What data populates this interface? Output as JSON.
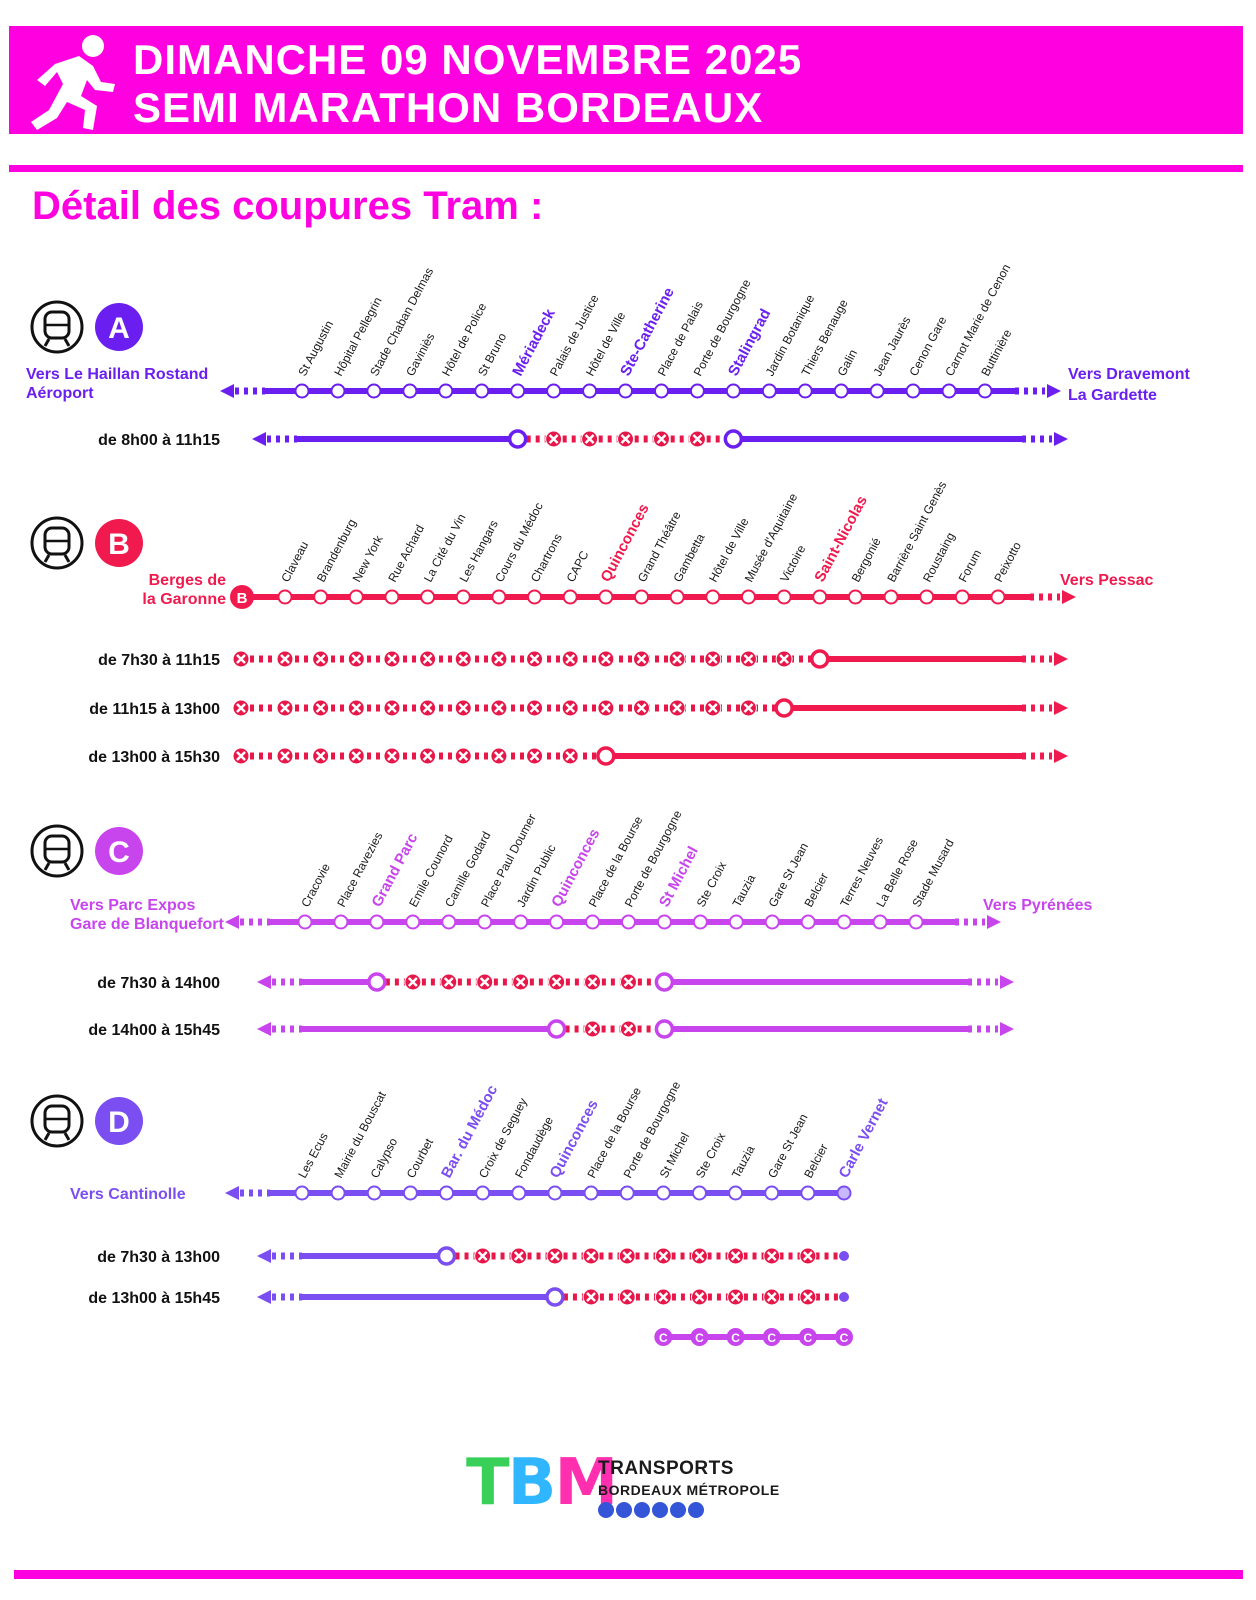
{
  "banner": {
    "line1": "DIMANCHE 09 NOVEMBRE 2025",
    "line2": "SEMI MARATHON BORDEAUX",
    "color": "#ff00e0",
    "icon": "runner-icon"
  },
  "section_title": "Détail des coupures Tram :",
  "lines": [
    {
      "id": "A",
      "color": "#6a1ff0",
      "terminus_left": [
        "Vers Le Haillan Rostand",
        "Aéroport"
      ],
      "terminus_right": [
        "Vers Dravemont",
        "La Gardette"
      ],
      "stations": [
        "St Augustin",
        "Hôpital Pellegrin",
        "Stade Chaban Delmas",
        "Gaviniès",
        "Hôtel de Police",
        "St Bruno",
        "Mériadeck",
        "Palais de Justice",
        "Hôtel de Ville",
        "Ste-Catherine",
        "Place de Palais",
        "Porte de Bourgogne",
        "Stalingrad",
        "Jardin Botanique",
        "Thiers Benauge",
        "Galin",
        "Jean Jaurès",
        "Cenon Gare",
        "Carnot Marie de Cenon",
        "Buttinière"
      ],
      "highlighted": [
        "Mériadeck",
        "Ste-Catherine",
        "Stalingrad"
      ],
      "closures": [
        {
          "label": "de 8h00 à 11h15",
          "open_left_until": "Mériadeck",
          "cut": [
            "Palais de Justice",
            "Hôtel de Ville",
            "Ste-Catherine",
            "Place de Palais",
            "Porte de Bourgogne"
          ],
          "open_right_from": "Stalingrad"
        }
      ]
    },
    {
      "id": "B",
      "color": "#f01a4e",
      "terminus_left": [
        "Berges de",
        "la Garonne"
      ],
      "terminus_right": [
        "Vers Pessac"
      ],
      "stations": [
        "Claveau",
        "Brandenburg",
        "New York",
        "Rue Achard",
        "La Cité du Vin",
        "Les Hangars",
        "Cours du Médoc",
        "Chartrons",
        "CAPC",
        "Quinconces",
        "Grand Théâtre",
        "Gambetta",
        "Hôtel de Ville",
        "Musée d'Aquitaine",
        "Victoire",
        "Saint-Nicolas",
        "Bergonié",
        "Barrière Saint Genès",
        "Roustaing",
        "Forum",
        "Peixotto"
      ],
      "highlighted": [
        "Quinconces",
        "Saint-Nicolas"
      ],
      "closures": [
        {
          "label": "de 7h30 à 11h15",
          "open_right_from": "Saint-Nicolas"
        },
        {
          "label": "de 11h15 à 13h00",
          "open_right_from": "Victoire"
        },
        {
          "label": "de 13h00 à 15h30",
          "open_right_from": "Quinconces"
        }
      ]
    },
    {
      "id": "C",
      "color": "#c845ee",
      "terminus_left": [
        "Vers Parc Expos",
        "Gare de Blanquefort"
      ],
      "terminus_right": [
        "Vers Pyrénées"
      ],
      "stations": [
        "Cracovie",
        "Place Ravezies",
        "Grand Parc",
        "Emile Counord",
        "Camille Godard",
        "Place Paul Doumer",
        "Jardin Public",
        "Quinconces",
        "Place de la Bourse",
        "Porte de Bourgogne",
        "St Michel",
        "Ste Croix",
        "Tauzia",
        "Gare St Jean",
        "Belcier",
        "Terres Neuves",
        "La Belle Rose",
        "Stade Musard"
      ],
      "highlighted": [
        "Grand Parc",
        "Quinconces",
        "St Michel"
      ],
      "closures": [
        {
          "label": "de 7h30 à 14h00",
          "open_left_until": "Grand Parc",
          "open_right_from": "St Michel"
        },
        {
          "label": "de 14h00 à 15h45",
          "open_left_until": "Quinconces",
          "open_right_from": "St Michel"
        }
      ]
    },
    {
      "id": "D",
      "color": "#7a4ef0",
      "terminus_left": [
        "Vers Cantinolle"
      ],
      "stations": [
        "Les Ecus",
        "Mairie du Bouscat",
        "Calypso",
        "Courbet",
        "Bar. du Médoc",
        "Croix de Seguey",
        "Fondaudège",
        "Quinconces",
        "Place de la Bourse",
        "Porte de Bourgogne",
        "St Michel",
        "Ste Croix",
        "Tauzia",
        "Gare St Jean",
        "Belcier",
        "Carle Vernet"
      ],
      "highlighted": [
        "Bar. du Médoc",
        "Quinconces",
        "Carle Vernet"
      ],
      "closures": [
        {
          "label": "de 7h30 à 13h00",
          "open_left_until": "Bar. du Médoc"
        },
        {
          "label": "de 13h00 à 15h45",
          "open_left_until": "Quinconces"
        }
      ],
      "shuttle_badge": "C"
    }
  ],
  "logo": {
    "letters": [
      "T",
      "B",
      "M"
    ],
    "line1": "TRANSPORTS",
    "line2": "BORDEAUX MÉTROPOLE",
    "icons": [
      "tram-icon",
      "bus-icon",
      "bike-icon",
      "boat-icon",
      "car-icon",
      "park-icon"
    ]
  }
}
